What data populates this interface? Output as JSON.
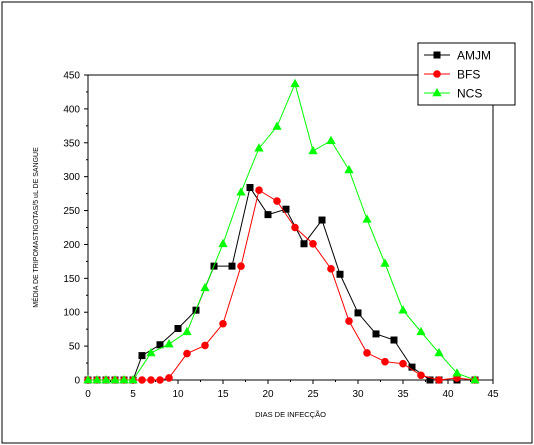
{
  "chart_data": {
    "type": "line",
    "title": "",
    "xlabel": "DIAS DE INFECÇÃO",
    "ylabel": "MÉDIA DE TRIPOMASTIGOTAS/5 uL DE SANGUE",
    "xlim": [
      0,
      45
    ],
    "ylim": [
      0,
      450
    ],
    "x_ticks": [
      0,
      5,
      10,
      15,
      20,
      25,
      30,
      35,
      40,
      45
    ],
    "y_ticks": [
      0,
      50,
      100,
      150,
      200,
      250,
      300,
      350,
      400,
      450
    ],
    "grid": false,
    "legend_position": "top-right",
    "series": [
      {
        "name": "AMJM",
        "color": "#000000",
        "marker": "square",
        "x": [
          0,
          1,
          2,
          3,
          4,
          5,
          6,
          8,
          10,
          12,
          14,
          16,
          18,
          20,
          22,
          24,
          26,
          28,
          30,
          32,
          34,
          36,
          38,
          39,
          41,
          43
        ],
        "y": [
          0,
          0,
          0,
          0,
          0,
          0,
          36,
          52,
          76,
          103,
          168,
          168,
          284,
          244,
          252,
          201,
          236,
          156,
          99,
          68,
          59,
          19,
          0,
          0,
          0,
          0
        ]
      },
      {
        "name": "BFS",
        "color": "#ff0000",
        "marker": "circle",
        "x": [
          0,
          1,
          2,
          3,
          4,
          5,
          6,
          7,
          8,
          9,
          11,
          13,
          15,
          17,
          19,
          21,
          23,
          25,
          27,
          29,
          31,
          33,
          35,
          37,
          39,
          41,
          43
        ],
        "y": [
          0,
          0,
          0,
          0,
          0,
          0,
          0,
          0,
          0,
          3,
          39,
          51,
          83,
          168,
          280,
          264,
          225,
          201,
          164,
          87,
          40,
          27,
          24,
          7,
          0,
          3,
          0
        ]
      },
      {
        "name": "NCS",
        "color": "#00ff00",
        "marker": "triangle",
        "x": [
          0,
          1,
          2,
          3,
          4,
          5,
          7,
          9,
          11,
          13,
          15,
          17,
          19,
          21,
          23,
          25,
          27,
          29,
          31,
          33,
          35,
          37,
          39,
          41,
          43
        ],
        "y": [
          0,
          0,
          0,
          0,
          0,
          0,
          40,
          53,
          71,
          136,
          201,
          277,
          342,
          374,
          437,
          338,
          353,
          310,
          237,
          172,
          103,
          71,
          40,
          10,
          0
        ]
      }
    ]
  }
}
